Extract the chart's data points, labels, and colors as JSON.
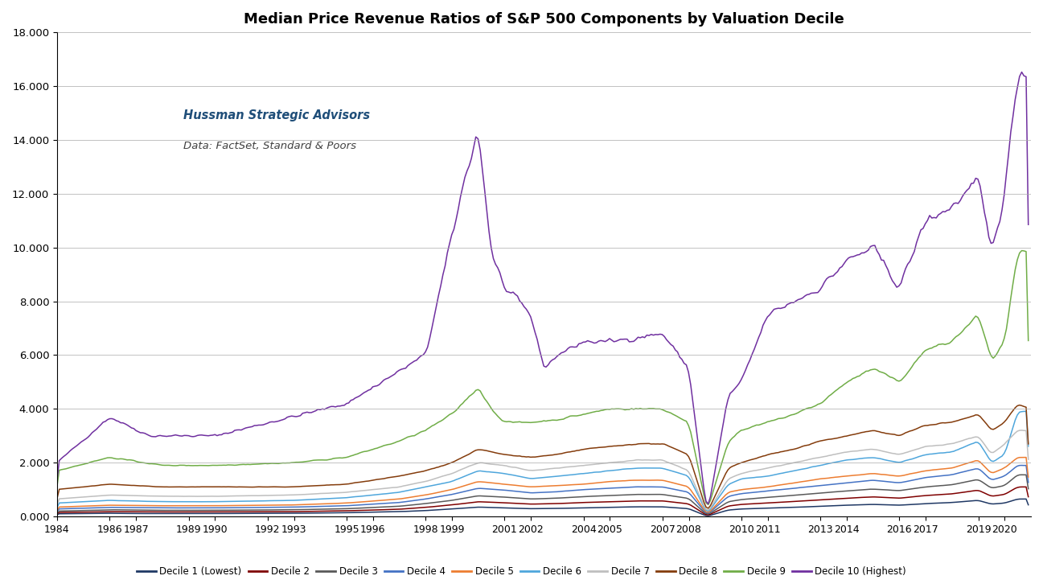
{
  "title": "Median Price Revenue Ratios of S&P 500 Components by Valuation Decile",
  "annotation_line1": "Hussman Strategic Advisors",
  "annotation_line2": "Data: FactSet, Standard & Poors",
  "ylim": [
    0,
    18
  ],
  "yticks": [
    0,
    2,
    4,
    6,
    8,
    10,
    12,
    14,
    16,
    18
  ],
  "ytick_labels": [
    "0.000",
    "2.000",
    "4.000",
    "6.000",
    "8.000",
    "10.000",
    "12.000",
    "14.000",
    "16.000",
    "18.000"
  ],
  "xtick_years": [
    1984,
    1986,
    1987,
    1989,
    1990,
    1992,
    1993,
    1995,
    1996,
    1998,
    1999,
    2001,
    2002,
    2004,
    2005,
    2007,
    2008,
    2010,
    2011,
    2013,
    2014,
    2016,
    2017,
    2019,
    2020
  ],
  "decile_colors": [
    "#1f3864",
    "#7f0000",
    "#595959",
    "#4472c4",
    "#ed7d31",
    "#4ea6dc",
    "#bfbfbf",
    "#843c0c",
    "#70ad47",
    "#7030a0"
  ],
  "decile_labels": [
    "Decile 1 (Lowest)",
    "Decile 2",
    "Decile 3",
    "Decile 4",
    "Decile 5",
    "Decile 6",
    "Decile 7",
    "Decile 8",
    "Decile 9",
    "Decile 10 (Highest)"
  ],
  "background_color": "#ffffff",
  "grid_color": "#aaaaaa"
}
